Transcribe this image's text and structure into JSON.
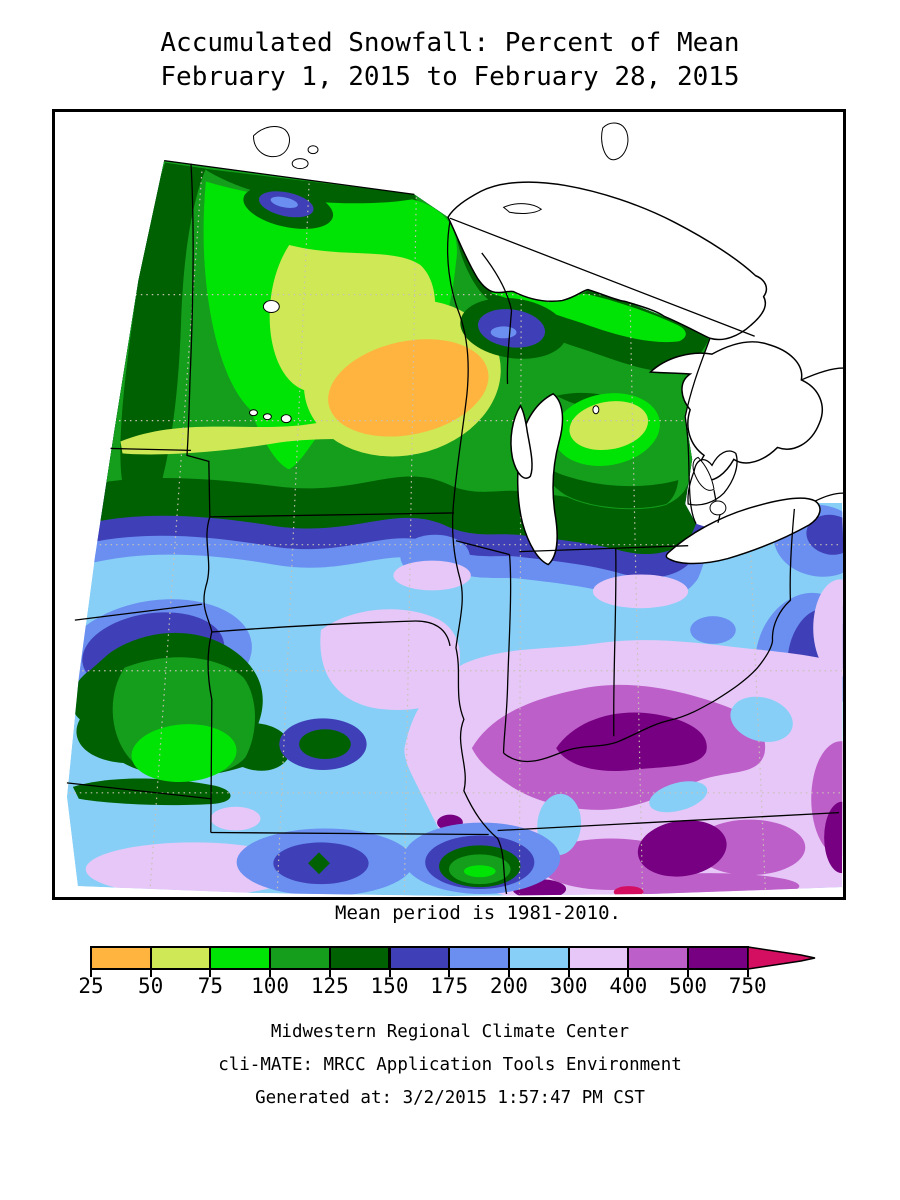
{
  "title": {
    "line1": "Accumulated Snowfall: Percent of Mean",
    "line2": "February 1, 2015 to February 28, 2015"
  },
  "map": {
    "caption": "Mean period is 1981-2010."
  },
  "legend": {
    "labels": [
      "25",
      "50",
      "75",
      "100",
      "125",
      "150",
      "175",
      "200",
      "300",
      "400",
      "500",
      "750"
    ],
    "cell_colors": [
      "#FFB43F",
      "#CFE855",
      "#00E405",
      "#149E1C",
      "#006102",
      "#3F40B7",
      "#6A8FF0",
      "#87CFF7",
      "#E7C7F7",
      "#BD5FC9",
      "#770082"
    ],
    "arrow_color": "#D40F62"
  },
  "footer": {
    "line1": "Midwestern Regional Climate Center",
    "line2": "cli-MATE: MRCC Application Tools Environment",
    "line3": "Generated at: 3/2/2015 1:57:47 PM CST"
  }
}
